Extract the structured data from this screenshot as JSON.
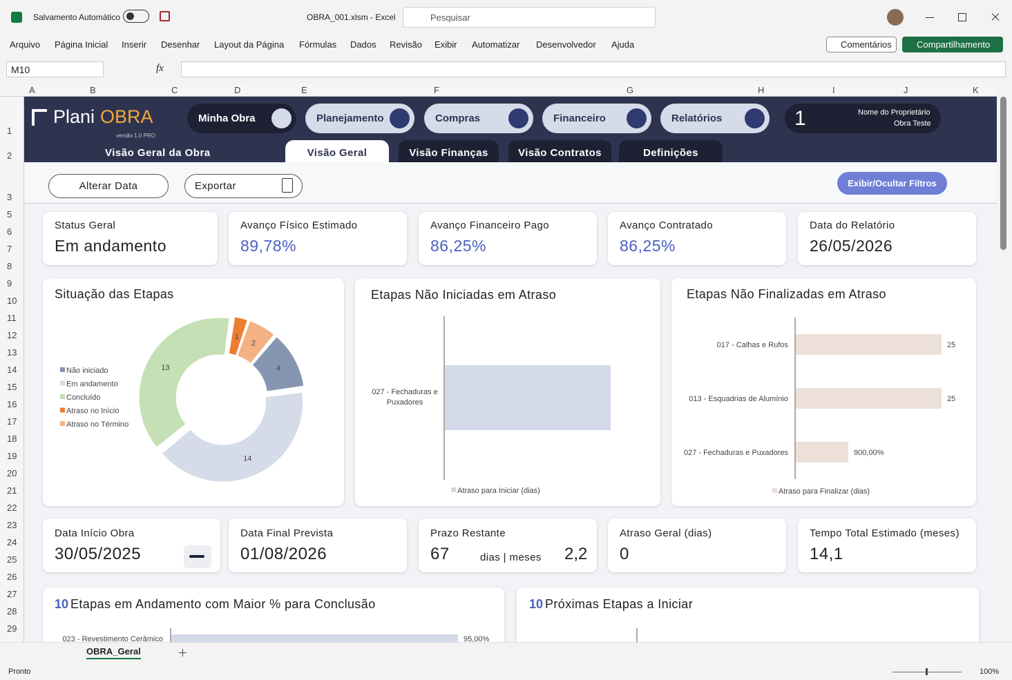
{
  "titlebar": {
    "autosave": "Salvamento Automático",
    "file": "OBRA_001.xlsm - Excel",
    "search": "Pesquisar"
  },
  "menu": [
    "Arquivo",
    "Página Inicial",
    "Inserir",
    "Desenhar",
    "Layout da Página",
    "Fórmulas",
    "Dados",
    "Revisão",
    "Exibir",
    "Automatizar",
    "Desenvolvedor",
    "Ajuda"
  ],
  "ribbon_buttons": {
    "comments": "Comentários",
    "share": "Compartilhamento"
  },
  "formula_bar": {
    "name_box": "M10",
    "fx": "fx"
  },
  "columns": [
    "A",
    "B",
    "C",
    "D",
    "E",
    "F",
    "G",
    "H",
    "I",
    "J",
    "K"
  ],
  "rows": [
    1,
    2,
    3,
    5,
    6,
    7,
    8,
    9,
    10,
    11,
    12,
    13,
    14,
    15,
    16,
    17,
    18,
    19,
    20,
    21,
    22,
    23,
    24,
    25,
    26,
    27,
    28,
    29
  ],
  "header": {
    "logo_a": "Plani",
    "logo_b": "OBRA",
    "version": "versão 1.0 PRO",
    "subtitle": "Visão Geral da Obra",
    "nav": [
      "Minha Obra",
      "Planejamento",
      "Compras",
      "Financeiro",
      "Relatórios"
    ],
    "user_number": "1",
    "owner_label": "Nome do Proprietário",
    "owner": "Obra Teste"
  },
  "tabs": [
    "Visão Geral",
    "Visão Finanças",
    "Visão Contratos",
    "Definições"
  ],
  "actions": {
    "change_date": "Alterar Data",
    "export": "Exportar",
    "filters": "Exibir/Ocultar Filtros"
  },
  "kpis": [
    {
      "label": "Status Geral",
      "value": "Em andamento"
    },
    {
      "label": "Avanço Físico Estimado",
      "value": "89,78%"
    },
    {
      "label": "Avanço Financeiro Pago",
      "value": "86,25%"
    },
    {
      "label": "Avanço Contratado",
      "value": "86,25%"
    },
    {
      "label": "Data do Relatório",
      "value": "26/05/2026"
    }
  ],
  "charts": [
    {
      "type": "donut",
      "title": "Situação das Etapas",
      "categories": [
        "Não iniciado",
        "Em andamento",
        "Concluído",
        "Atraso no Início",
        "Atraso no Término"
      ],
      "values": [
        4,
        14,
        13,
        1,
        2
      ],
      "colors": [
        "#8796b0",
        "#d5dbe8",
        "#c5e0b4",
        "#ed7d31",
        "#f4b183"
      ]
    },
    {
      "type": "bar",
      "title": "Etapas Não Iniciadas em Atraso",
      "categories": [
        "027 - Fechaduras e Puxadores"
      ],
      "values": [
        1
      ],
      "legend": "Atraso para Iniciar (dias)",
      "color": "#d3d9e8"
    },
    {
      "type": "bar",
      "title": "Etapas Não Finalizadas em Atraso",
      "categories": [
        "017 - Calhas e Rufos",
        "013 - Esquadrias de Alumínio",
        "027 - Fechaduras e Puxadores"
      ],
      "values": [
        25,
        25,
        9
      ],
      "value_labels": [
        "25",
        "25",
        "900,00%"
      ],
      "legend": "Atraso para Finalizar (dias)",
      "color": "#ede0d9"
    },
    {
      "type": "bar",
      "count": "10",
      "title": "Etapas em Andamento com Maior % para Conclusão",
      "categories": [
        "023 - Revestimento Cerâmico"
      ],
      "values": [
        95
      ],
      "value_labels": [
        "95,00%"
      ],
      "color": "#d3d9e8"
    },
    {
      "type": "bar",
      "count": "10",
      "title": "Próximas Etapas a Iniciar",
      "categories": [],
      "values": [],
      "color": "#d3d9e8"
    }
  ],
  "kpis2": [
    {
      "label": "Data Início Obra",
      "value": "30/05/2025"
    },
    {
      "label": "Data Final Prevista",
      "value": "01/08/2026"
    },
    {
      "label": "Prazo Restante",
      "value": "67",
      "unit": "dias | meses",
      "value2": "2,2"
    },
    {
      "label": "Atraso Geral (dias)",
      "value": "0"
    },
    {
      "label": "Tempo Total Estimado (meses)",
      "value": "14,1"
    }
  ],
  "sheet_tab": "OBRA_Geral",
  "status": "Pronto",
  "zoom": "100%"
}
